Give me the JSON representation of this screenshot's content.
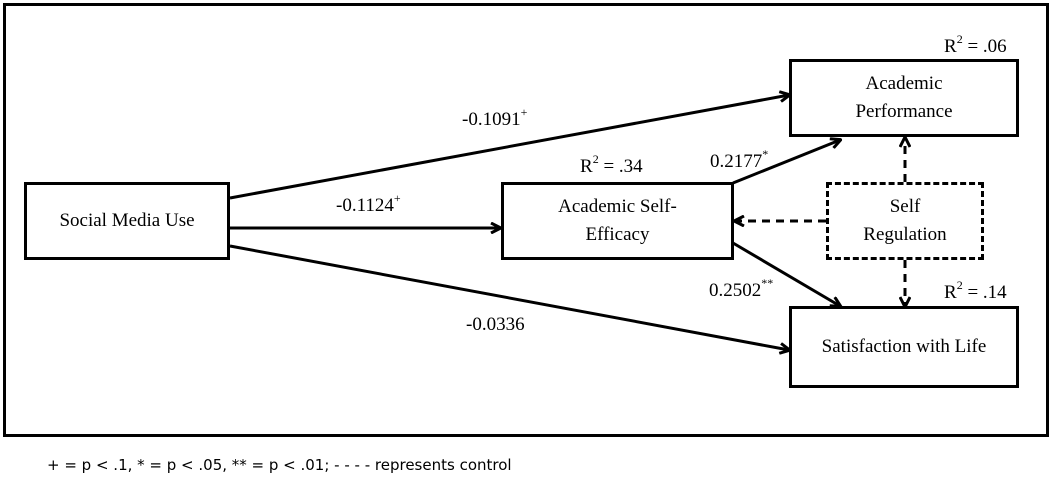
{
  "nodes": {
    "social_media_use": "Social Media Use",
    "self_efficacy_line1": "Academic Self-",
    "self_efficacy_line2": "Efficacy",
    "performance_line1": "Academic",
    "performance_line2": "Performance",
    "satisfaction": "Satisfaction with Life",
    "self_regulation_line1": "Self",
    "self_regulation_line2": "Regulation"
  },
  "r_squared": {
    "performance": {
      "prefix": "R",
      "exp": "2",
      "value": " = .06"
    },
    "self_efficacy": {
      "prefix": "R",
      "exp": "2",
      "value": " = .34"
    },
    "satisfaction": {
      "prefix": "R",
      "exp": "2",
      "value": " = .14"
    }
  },
  "paths": {
    "sm_to_performance": {
      "value": "-0.1091",
      "sig": "+"
    },
    "sm_to_efficacy": {
      "value": "-0.1124",
      "sig": "+"
    },
    "sm_to_satisfaction": {
      "value": "-0.0336",
      "sig": ""
    },
    "efficacy_to_performance": {
      "value": "0.2177",
      "sig": "*"
    },
    "efficacy_to_satisfaction": {
      "value": "0.2502",
      "sig": "**"
    }
  },
  "footnote": "+ = p < .1, * = p < .05, ** = p < .01; - - - - represents control"
}
